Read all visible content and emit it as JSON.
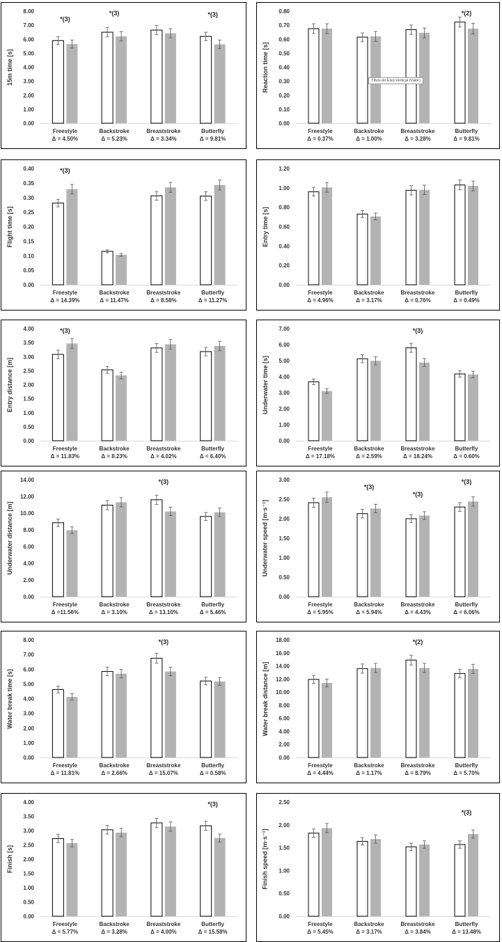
{
  "colors": {
    "series2": "#b3b3b3",
    "series1": "#ffffff",
    "axis": "#d9d9d9",
    "text": "#333333"
  },
  "panels": [
    {
      "id": "p1",
      "ylabel": "15m time [s]",
      "yticks": [
        "0.00",
        "1.00",
        "2.00",
        "3.00",
        "4.00",
        "5.00",
        "6.00",
        "7.00",
        "8.00"
      ],
      "categories": [
        "Freestyle",
        "Backstroke",
        "Breaststroke",
        "Butterfly"
      ],
      "deltas": [
        "Δ = 4.50%",
        "Δ = 5.23%",
        "Δ = 3.34%",
        "Δ = 9.81%"
      ],
      "annotations": [
        "*(3)",
        "*(3)",
        "",
        "*(3)"
      ]
    },
    {
      "id": "p2",
      "ylabel": "Reaction time [s]",
      "yticks": [
        "0.00",
        "0.10",
        "0.20",
        "0.30",
        "0.40",
        "0.50",
        "0.60",
        "0.70",
        "0.80"
      ],
      "categories": [
        "Freestyle",
        "Backstroke",
        "Breaststroke",
        "Butterfly"
      ],
      "deltas": [
        "Δ = 0.37%",
        "Δ = 1.00%",
        "Δ = 3.28%",
        "Δ = 9.81%"
      ],
      "annotations": [
        "",
        "",
        "",
        "*(2)"
      ],
      "tooltip": "Título do Eixo Vertical (Valor)"
    },
    {
      "id": "p3",
      "ylabel": "Flight time [s]",
      "yticks": [
        "0.00",
        "0.05",
        "0.10",
        "0.15",
        "0.20",
        "0.25",
        "0.30",
        "0.35",
        "0.40"
      ],
      "categories": [
        "Freestyle",
        "Backstroke",
        "Breaststroke",
        "Butterfly"
      ],
      "deltas": [
        "Δ = 14.39%",
        "Δ = 11.47%",
        "Δ = 8.58%",
        "Δ = 11.27%"
      ],
      "annotations": [
        "*(3)",
        "",
        "",
        ""
      ]
    },
    {
      "id": "p4",
      "ylabel": "Entry time [s]",
      "yticks": [
        "0.00",
        "0.20",
        "0.40",
        "0.60",
        "0.80",
        "1.00",
        "1.20"
      ],
      "categories": [
        "Freestyle",
        "Backstroke",
        "Breaststroke",
        "Butterfly"
      ],
      "deltas": [
        "Δ = 4.96%",
        "Δ = 3.17%",
        "Δ = 0.76%",
        "Δ = 0.49%"
      ],
      "annotations": [
        "",
        "",
        "",
        ""
      ]
    },
    {
      "id": "p5",
      "ylabel": "Entry distance [m]",
      "yticks": [
        "0.00",
        "0.50",
        "1.00",
        "1.50",
        "2.00",
        "2.50",
        "3.00",
        "3.50",
        "4.00"
      ],
      "categories": [
        "Freestyle",
        "Backstroke",
        "Breaststroke",
        "Butterfly"
      ],
      "deltas": [
        "Δ = 11.83%",
        "Δ = 8.23%",
        "Δ = 4.02%",
        "Δ = 6.40%"
      ],
      "annotations": [
        "*(3)",
        "",
        "",
        ""
      ]
    },
    {
      "id": "p6",
      "ylabel": "Underwater time [s]",
      "yticks": [
        "0.00",
        "1.00",
        "2.00",
        "3.00",
        "4.00",
        "5.00",
        "6.00",
        "7.00"
      ],
      "categories": [
        "Freestyle",
        "Backstroke",
        "Breaststroke",
        "Butterfly"
      ],
      "deltas": [
        "Δ = 17.18%",
        "Δ = 2.59%",
        "Δ = 18.24%",
        "Δ = 0.60%"
      ],
      "annotations": [
        "",
        "",
        "*(3)",
        ""
      ]
    },
    {
      "id": "p7",
      "ylabel": "Underwater distance [m]",
      "yticks": [
        "0.00",
        "2.00",
        "4.00",
        "6.00",
        "8.00",
        "10.00",
        "12.00",
        "14.00"
      ],
      "categories": [
        "Freestyle",
        "Backstroke",
        "Breaststroke",
        "Butterfly"
      ],
      "deltas": [
        "Δ =11.56%",
        "Δ = 3.10%",
        "Δ = 13.10%",
        "Δ = 5.46%"
      ],
      "annotations": [
        "",
        "",
        "*(3)",
        ""
      ]
    },
    {
      "id": "p8",
      "ylabel": "Underwater speed [m·s⁻¹]",
      "yticks": [
        "0.00",
        "0.50",
        "1.00",
        "1.50",
        "2.00",
        "2.50",
        "3.00"
      ],
      "categories": [
        "Freestyle",
        "Backstroke",
        "Breaststroke",
        "Butterfly"
      ],
      "deltas": [
        "Δ = 5.95%",
        "Δ = 5.94%",
        "Δ = 4.43%",
        "Δ = 6.06%"
      ],
      "annotations": [
        "",
        "*(3)",
        "*(3)",
        "*(3)"
      ]
    },
    {
      "id": "p9",
      "ylabel": "Water break time [s]",
      "yticks": [
        "0.00",
        "1.00",
        "2.00",
        "3.00",
        "4.00",
        "5.00",
        "6.00",
        "7.00",
        "8.00"
      ],
      "categories": [
        "Freestyle",
        "Backstroke",
        "Breaststroke",
        "Butterfly"
      ],
      "deltas": [
        "Δ = 11.81%",
        "Δ = 2.66%",
        "Δ = 15.07%",
        "Δ = 0.58%"
      ],
      "annotations": [
        "",
        "",
        "*(3)",
        ""
      ]
    },
    {
      "id": "p10",
      "ylabel": "Water break distance [m]",
      "yticks": [
        "0.00",
        "2.00",
        "4.00",
        "6.00",
        "8.00",
        "10.00",
        "12.00",
        "14.00",
        "16.00",
        "18.00"
      ],
      "categories": [
        "Freestyle",
        "Backstroke",
        "Breaststroke",
        "Butterfly"
      ],
      "deltas": [
        "Δ = 4.44%",
        "Δ = 1.17%",
        "Δ = 8.79%",
        "Δ = 5.70%"
      ],
      "annotations": [
        "",
        "",
        "*(2)",
        ""
      ]
    },
    {
      "id": "p11",
      "ylabel": "Finish [s]",
      "yticks": [
        "0.00",
        "0.50",
        "1.00",
        "1.50",
        "2.00",
        "2.50",
        "3.00",
        "3.50",
        "4.00"
      ],
      "categories": [
        "Freestyle",
        "Backstroke",
        "Breaststroke",
        "Butterfly"
      ],
      "deltas": [
        "Δ = 5.77%",
        "Δ = 3.28%",
        "Δ = 4.00%",
        "Δ = 15.58%"
      ],
      "annotations": [
        "",
        "",
        "",
        "*(3)"
      ]
    },
    {
      "id": "p12",
      "ylabel": "Finish  speed [m·s⁻¹]",
      "yticks": [
        "0.00",
        "0.50",
        "1.00",
        "1.50",
        "2.00",
        "2.50"
      ],
      "categories": [
        "Freestyle",
        "Backstroke",
        "Breaststroke",
        "Butterfly"
      ],
      "deltas": [
        "Δ = 5.45%",
        "Δ = 3.17%",
        "Δ = 3.84%",
        "Δ = 13.48%"
      ],
      "annotations": [
        "",
        "",
        "",
        "*(3)"
      ]
    }
  ],
  "chart_data": [
    {
      "type": "bar",
      "ylabel": "15m time [s]",
      "ylim": [
        0,
        8
      ],
      "categories": [
        "Freestyle",
        "Backstroke",
        "Breaststroke",
        "Butterfly"
      ],
      "series": [
        {
          "values": [
            5.9,
            6.5,
            6.65,
            6.2
          ],
          "errors": [
            0.28,
            0.33,
            0.33,
            0.3
          ]
        },
        {
          "values": [
            5.65,
            6.2,
            6.42,
            5.63
          ],
          "errors": [
            0.28,
            0.33,
            0.33,
            0.3
          ]
        }
      ]
    },
    {
      "type": "bar",
      "ylabel": "Reaction time [s]",
      "ylim": [
        0,
        0.8
      ],
      "categories": [
        "Freestyle",
        "Backstroke",
        "Breaststroke",
        "Butterfly"
      ],
      "series": [
        {
          "values": [
            0.675,
            0.615,
            0.668,
            0.722
          ],
          "errors": [
            0.035,
            0.03,
            0.033,
            0.035
          ]
        },
        {
          "values": [
            0.675,
            0.62,
            0.645,
            0.675
          ],
          "errors": [
            0.035,
            0.035,
            0.035,
            0.038
          ]
        }
      ]
    },
    {
      "type": "bar",
      "ylabel": "Flight time [s]",
      "ylim": [
        0,
        0.4
      ],
      "categories": [
        "Freestyle",
        "Backstroke",
        "Breaststroke",
        "Butterfly"
      ],
      "series": [
        {
          "values": [
            0.281,
            0.115,
            0.306,
            0.305
          ],
          "errors": [
            0.013,
            0.005,
            0.015,
            0.015
          ]
        },
        {
          "values": [
            0.329,
            0.103,
            0.335,
            0.343
          ],
          "errors": [
            0.016,
            0.005,
            0.017,
            0.017
          ]
        }
      ]
    },
    {
      "type": "bar",
      "ylabel": "Entry time [s]",
      "ylim": [
        0,
        1.2
      ],
      "categories": [
        "Freestyle",
        "Backstroke",
        "Breaststroke",
        "Butterfly"
      ],
      "series": [
        {
          "values": [
            0.96,
            0.73,
            0.975,
            1.03
          ],
          "errors": [
            0.045,
            0.035,
            0.048,
            0.05
          ]
        },
        {
          "values": [
            1.005,
            0.705,
            0.98,
            1.02
          ],
          "errors": [
            0.05,
            0.035,
            0.048,
            0.05
          ]
        }
      ]
    },
    {
      "type": "bar",
      "ylabel": "Entry distance [m]",
      "ylim": [
        0,
        4
      ],
      "categories": [
        "Freestyle",
        "Backstroke",
        "Breaststroke",
        "Butterfly"
      ],
      "series": [
        {
          "values": [
            3.08,
            2.53,
            3.31,
            3.18
          ],
          "errors": [
            0.15,
            0.12,
            0.16,
            0.15
          ]
        },
        {
          "values": [
            3.47,
            2.33,
            3.44,
            3.38
          ],
          "errors": [
            0.17,
            0.12,
            0.17,
            0.17
          ]
        }
      ]
    },
    {
      "type": "bar",
      "ylabel": "Underwater time [s]",
      "ylim": [
        0,
        7
      ],
      "categories": [
        "Freestyle",
        "Backstroke",
        "Breaststroke",
        "Butterfly"
      ],
      "series": [
        {
          "values": [
            3.68,
            5.12,
            5.8,
            4.17
          ],
          "errors": [
            0.18,
            0.25,
            0.28,
            0.2
          ]
        },
        {
          "values": [
            3.1,
            4.99,
            4.88,
            4.14
          ],
          "errors": [
            0.15,
            0.25,
            0.25,
            0.2
          ]
        }
      ]
    },
    {
      "type": "bar",
      "ylabel": "Underwater distance [m]",
      "ylim": [
        0,
        14
      ],
      "categories": [
        "Freestyle",
        "Backstroke",
        "Breaststroke",
        "Butterfly"
      ],
      "series": [
        {
          "values": [
            8.85,
            10.95,
            11.6,
            9.6
          ],
          "errors": [
            0.45,
            0.55,
            0.55,
            0.48
          ]
        },
        {
          "values": [
            7.95,
            11.3,
            10.2,
            10.1
          ],
          "errors": [
            0.4,
            0.55,
            0.5,
            0.5
          ]
        }
      ]
    },
    {
      "type": "bar",
      "ylabel": "Underwater speed [m·s⁻¹]",
      "ylim": [
        0,
        3
      ],
      "categories": [
        "Freestyle",
        "Backstroke",
        "Breaststroke",
        "Butterfly"
      ],
      "series": [
        {
          "values": [
            2.41,
            2.13,
            2.0,
            2.3
          ],
          "errors": [
            0.12,
            0.11,
            0.1,
            0.11
          ]
        },
        {
          "values": [
            2.55,
            2.26,
            2.08,
            2.44
          ],
          "errors": [
            0.13,
            0.11,
            0.1,
            0.12
          ]
        }
      ]
    },
    {
      "type": "bar",
      "ylabel": "Water break time [s]",
      "ylim": [
        0,
        8
      ],
      "categories": [
        "Freestyle",
        "Backstroke",
        "Breaststroke",
        "Butterfly"
      ],
      "series": [
        {
          "values": [
            4.62,
            5.85,
            6.75,
            5.2
          ],
          "errors": [
            0.23,
            0.29,
            0.34,
            0.26
          ]
        },
        {
          "values": [
            4.12,
            5.7,
            5.85,
            5.17
          ],
          "errors": [
            0.21,
            0.29,
            0.29,
            0.26
          ]
        }
      ]
    },
    {
      "type": "bar",
      "ylabel": "Water break distance [m]",
      "ylim": [
        0,
        18
      ],
      "categories": [
        "Freestyle",
        "Backstroke",
        "Breaststroke",
        "Butterfly"
      ],
      "series": [
        {
          "values": [
            11.95,
            13.6,
            14.9,
            12.85
          ],
          "errors": [
            0.6,
            0.7,
            0.75,
            0.65
          ]
        },
        {
          "values": [
            11.4,
            13.7,
            13.7,
            13.55
          ],
          "errors": [
            0.6,
            0.7,
            0.7,
            0.7
          ]
        }
      ]
    },
    {
      "type": "bar",
      "ylabel": "Finish [s]",
      "ylim": [
        0,
        4
      ],
      "categories": [
        "Freestyle",
        "Backstroke",
        "Breaststroke",
        "Butterfly"
      ],
      "series": [
        {
          "values": [
            2.72,
            3.03,
            3.27,
            3.17
          ],
          "errors": [
            0.14,
            0.15,
            0.16,
            0.16
          ]
        },
        {
          "values": [
            2.56,
            2.93,
            3.14,
            2.74
          ],
          "errors": [
            0.13,
            0.15,
            0.16,
            0.14
          ]
        }
      ]
    },
    {
      "type": "bar",
      "ylabel": "Finish  speed [m·s⁻¹]",
      "ylim": [
        0,
        2.5
      ],
      "categories": [
        "Freestyle",
        "Backstroke",
        "Breaststroke",
        "Butterfly"
      ],
      "series": [
        {
          "values": [
            1.82,
            1.64,
            1.52,
            1.57
          ],
          "errors": [
            0.09,
            0.08,
            0.08,
            0.08
          ]
        },
        {
          "values": [
            1.93,
            1.69,
            1.57,
            1.8
          ],
          "errors": [
            0.1,
            0.09,
            0.08,
            0.09
          ]
        }
      ]
    }
  ]
}
